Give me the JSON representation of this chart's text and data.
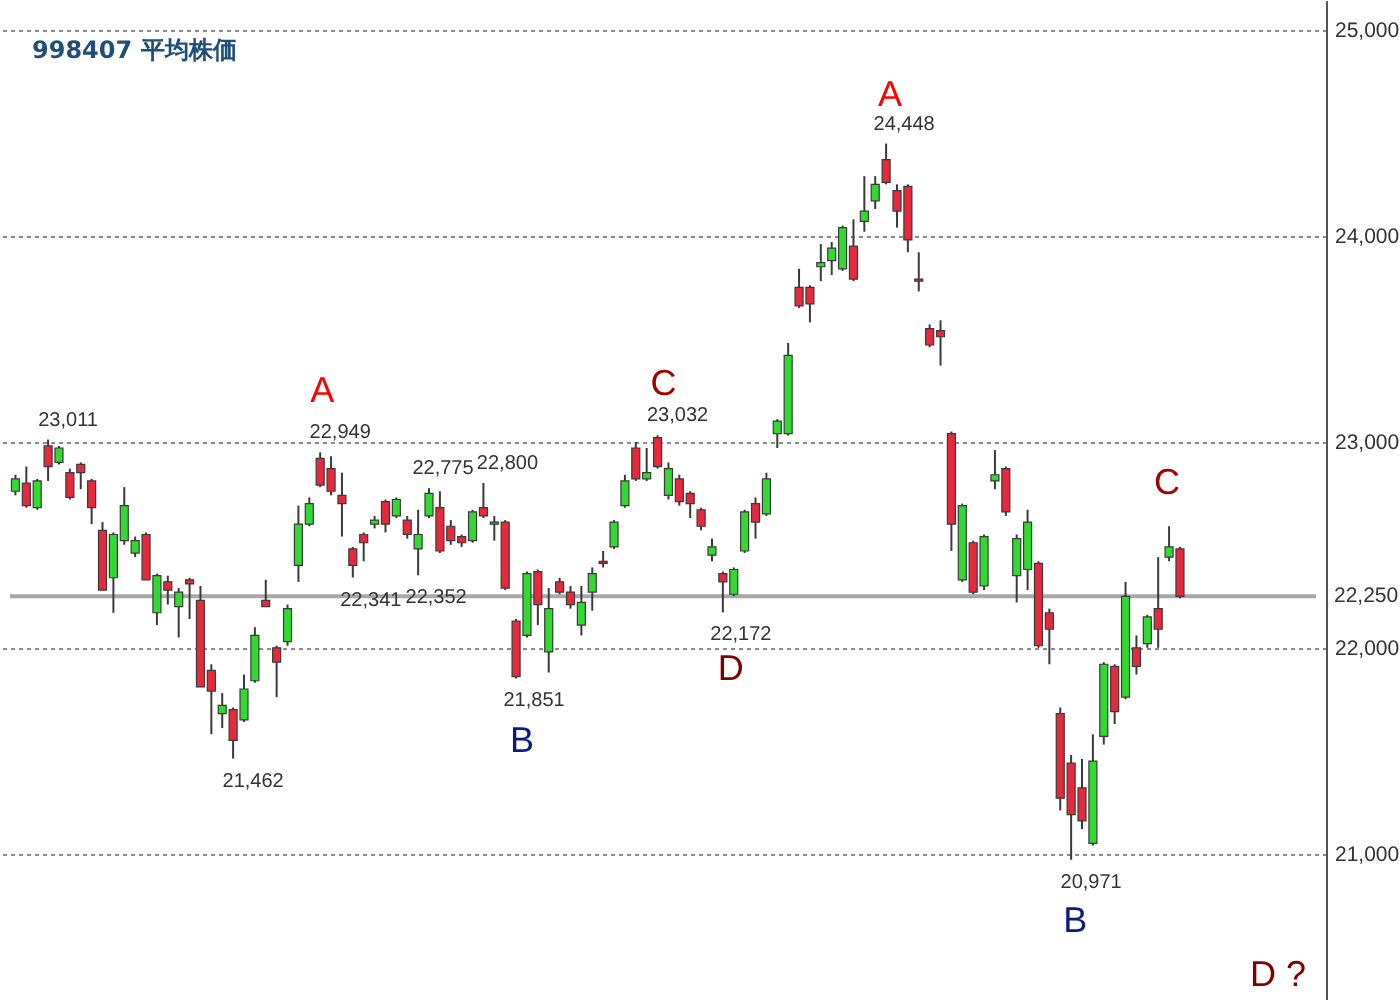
{
  "chart_data": {
    "type": "candlestick",
    "title": "998407 平均株価",
    "categories": [
      null,
      null,
      null,
      null,
      null,
      null,
      null,
      null,
      null,
      null,
      null,
      null,
      null,
      null,
      null,
      null,
      null,
      null,
      null,
      null,
      null,
      null,
      null,
      null,
      null,
      null,
      null,
      null,
      null,
      null,
      null,
      null,
      null,
      null,
      null,
      null,
      null,
      null,
      null,
      null,
      null,
      null,
      null,
      null,
      null,
      null,
      null,
      null,
      null,
      null,
      null,
      null,
      null,
      null,
      null,
      null,
      null,
      null,
      null,
      null,
      null,
      null,
      null,
      null,
      null,
      null,
      null,
      null,
      null,
      null,
      null,
      null,
      null,
      null,
      null,
      null,
      null,
      null,
      null,
      null,
      null,
      null,
      null,
      null,
      null,
      null,
      null,
      null,
      null,
      null,
      null,
      null,
      null,
      null,
      null,
      null,
      null,
      null,
      null,
      null,
      null,
      null,
      null,
      null,
      null,
      null,
      null,
      null,
      null,
      null,
      null,
      null,
      null,
      null,
      null,
      null,
      null,
      null,
      null,
      null
    ],
    "ohlc": [
      [
        22760,
        22840,
        22740,
        22820
      ],
      [
        22800,
        22880,
        22680,
        22690
      ],
      [
        22680,
        22820,
        22670,
        22810
      ],
      [
        22980,
        23011,
        22810,
        22880
      ],
      [
        22900,
        22980,
        22890,
        22970
      ],
      [
        22850,
        22870,
        22720,
        22730
      ],
      [
        22890,
        22900,
        22770,
        22850
      ],
      [
        22810,
        22820,
        22600,
        22680
      ],
      [
        22570,
        22610,
        22280,
        22280
      ],
      [
        22340,
        22560,
        22170,
        22550
      ],
      [
        22520,
        22780,
        22500,
        22690
      ],
      [
        22460,
        22540,
        22440,
        22520
      ],
      [
        22550,
        22560,
        22330,
        22330
      ],
      [
        22170,
        22360,
        22110,
        22350
      ],
      [
        22320,
        22350,
        22210,
        22280
      ],
      [
        22200,
        22290,
        22050,
        22270
      ],
      [
        22330,
        22340,
        22140,
        22310
      ],
      [
        22230,
        22300,
        21810,
        21810
      ],
      [
        21890,
        21920,
        21580,
        21790
      ],
      [
        21680,
        21780,
        21610,
        21720
      ],
      [
        21700,
        21710,
        21462,
        21550
      ],
      [
        21650,
        21870,
        21640,
        21800
      ],
      [
        21840,
        22100,
        21830,
        22060
      ],
      [
        22230,
        22330,
        22200,
        22200
      ],
      [
        22000,
        22010,
        21760,
        21930
      ],
      [
        22030,
        22210,
        22010,
        22190
      ],
      [
        22400,
        22690,
        22320,
        22600
      ],
      [
        22600,
        22730,
        22590,
        22700
      ],
      [
        22920,
        22949,
        22780,
        22790
      ],
      [
        22870,
        22930,
        22740,
        22760
      ],
      [
        22740,
        22850,
        22540,
        22700
      ],
      [
        22480,
        22490,
        22341,
        22400
      ],
      [
        22550,
        22560,
        22420,
        22510
      ],
      [
        22600,
        22640,
        22580,
        22620
      ],
      [
        22710,
        22720,
        22560,
        22600
      ],
      [
        22640,
        22730,
        22630,
        22720
      ],
      [
        22620,
        22640,
        22530,
        22550
      ],
      [
        22480,
        22670,
        22352,
        22550
      ],
      [
        22640,
        22775,
        22630,
        22750
      ],
      [
        22680,
        22760,
        22460,
        22470
      ],
      [
        22590,
        22620,
        22500,
        22520
      ],
      [
        22540,
        22550,
        22490,
        22510
      ],
      [
        22520,
        22670,
        22510,
        22660
      ],
      [
        22680,
        22800,
        22630,
        22640
      ],
      [
        22600,
        22640,
        22520,
        22610
      ],
      [
        22610,
        22620,
        22280,
        22290
      ],
      [
        22130,
        22140,
        21851,
        21860
      ],
      [
        22060,
        22370,
        22050,
        22360
      ],
      [
        22370,
        22380,
        22110,
        22210
      ],
      [
        21980,
        22290,
        21880,
        22190
      ],
      [
        22320,
        22340,
        22260,
        22270
      ],
      [
        22270,
        22300,
        22190,
        22210
      ],
      [
        22110,
        22300,
        22060,
        22220
      ],
      [
        22270,
        22390,
        22180,
        22360
      ],
      [
        22420,
        22470,
        22390,
        22410
      ],
      [
        22490,
        22620,
        22480,
        22610
      ],
      [
        22690,
        22840,
        22680,
        22810
      ],
      [
        22970,
        23000,
        22810,
        22820
      ],
      [
        22820,
        22970,
        22810,
        22850
      ],
      [
        23020,
        23032,
        22870,
        22880
      ],
      [
        22740,
        22900,
        22720,
        22870
      ],
      [
        22820,
        22840,
        22690,
        22710
      ],
      [
        22750,
        22760,
        22630,
        22700
      ],
      [
        22670,
        22680,
        22570,
        22590
      ],
      [
        22450,
        22530,
        22420,
        22490
      ],
      [
        22360,
        22370,
        22172,
        22320
      ],
      [
        22260,
        22390,
        22250,
        22380
      ],
      [
        22470,
        22670,
        22460,
        22660
      ],
      [
        22700,
        22730,
        22530,
        22610
      ],
      [
        22650,
        22850,
        22640,
        22820
      ],
      [
        23040,
        23110,
        22970,
        23100
      ],
      [
        23040,
        23480,
        23030,
        23420
      ],
      [
        23750,
        23840,
        23650,
        23660
      ],
      [
        23750,
        23760,
        23580,
        23670
      ],
      [
        23850,
        23960,
        23780,
        23870
      ],
      [
        23880,
        23970,
        23810,
        23940
      ],
      [
        23840,
        24050,
        23830,
        24040
      ],
      [
        23950,
        24080,
        23780,
        23790
      ],
      [
        24070,
        24290,
        24020,
        24120
      ],
      [
        24170,
        24290,
        24130,
        24250
      ],
      [
        24370,
        24448,
        24250,
        24260
      ],
      [
        24220,
        24250,
        24040,
        24120
      ],
      [
        24240,
        24250,
        23920,
        23980
      ],
      [
        23790,
        23920,
        23730,
        23780
      ],
      [
        23550,
        23570,
        23460,
        23470
      ],
      [
        23540,
        23590,
        23370,
        23510
      ],
      [
        23040,
        23050,
        22470,
        22600
      ],
      [
        22330,
        22700,
        22320,
        22690
      ],
      [
        22510,
        22520,
        22260,
        22270
      ],
      [
        22300,
        22550,
        22280,
        22540
      ],
      [
        22810,
        22960,
        22770,
        22840
      ],
      [
        22870,
        22880,
        22640,
        22660
      ],
      [
        22350,
        22550,
        22220,
        22530
      ],
      [
        22380,
        22670,
        22280,
        22610
      ],
      [
        22410,
        22420,
        22000,
        22010
      ],
      [
        22170,
        22190,
        21920,
        22090
      ],
      [
        21680,
        21710,
        21210,
        21270
      ],
      [
        21440,
        21480,
        20971,
        21190
      ],
      [
        21320,
        21460,
        21120,
        21160
      ],
      [
        21050,
        21580,
        21040,
        21450
      ],
      [
        21570,
        21930,
        21530,
        21920
      ],
      [
        21910,
        21920,
        21630,
        21690
      ],
      [
        21760,
        22320,
        21750,
        22250
      ],
      [
        22000,
        22060,
        21870,
        21910
      ],
      [
        22020,
        22160,
        22000,
        22150
      ],
      [
        22190,
        22440,
        22000,
        22090
      ],
      [
        22440,
        22590,
        22420,
        22490
      ],
      [
        22480,
        22490,
        22240,
        22250
      ],
      null,
      null,
      null,
      null,
      null,
      null,
      null,
      null,
      null,
      null,
      null,
      null
    ],
    "colors": [
      "#31d931",
      "#e8283c",
      "#31d931",
      "#e8283c",
      "#31d931",
      "#e8283c",
      "#e8283c",
      "#e8283c",
      "#e8283c",
      "#31d931",
      "#31d931",
      "#31d931",
      "#e8283c",
      "#31d931",
      "#e8283c",
      "#31d931",
      "#e8283c",
      "#e8283c",
      "#e8283c",
      "#31d931",
      "#e8283c",
      "#31d931",
      "#31d931",
      "#e8283c",
      "#e8283c",
      "#31d931",
      "#31d931",
      "#31d931",
      "#e8283c",
      "#e8283c",
      "#e8283c",
      "#e8283c",
      "#e8283c",
      "#31d931",
      "#e8283c",
      "#31d931",
      "#e8283c",
      "#31d931",
      "#31d931",
      "#e8283c",
      "#e8283c",
      "#e8283c",
      "#31d931",
      "#e8283c",
      "#31d931",
      "#e8283c",
      "#e8283c",
      "#31d931",
      "#e8283c",
      "#31d931",
      "#e8283c",
      "#e8283c",
      "#31d931",
      "#31d931",
      "#e8283c",
      "#31d931",
      "#31d931",
      "#e8283c",
      "#31d931",
      "#e8283c",
      "#31d931",
      "#e8283c",
      "#e8283c",
      "#e8283c",
      "#31d931",
      "#e8283c",
      "#31d931",
      "#31d931",
      "#e8283c",
      "#31d931",
      "#31d931",
      "#31d931",
      "#e8283c",
      "#e8283c",
      "#31d931",
      "#31d931",
      "#31d931",
      "#e8283c",
      "#31d931",
      "#31d931",
      "#e8283c",
      "#e8283c",
      "#e8283c",
      "#e8283c",
      "#e8283c",
      "#e8283c",
      "#e8283c",
      "#31d931",
      "#e8283c",
      "#31d931",
      "#31d931",
      "#e8283c",
      "#31d931",
      "#31d931",
      "#e8283c",
      "#e8283c",
      "#e8283c",
      "#e8283c",
      "#e8283c",
      "#31d931",
      "#31d931",
      "#e8283c",
      "#31d931",
      "#e8283c",
      "#31d931",
      "#e8283c",
      "#31d931",
      "#e8283c",
      null,
      null,
      null,
      null,
      null,
      null,
      null,
      null,
      null,
      null,
      null,
      null
    ],
    "ylim": [
      20290,
      25145
    ],
    "yticks": [
      {
        "value": 21000,
        "label": "21,000"
      },
      {
        "value": 22000,
        "label": "22,000"
      },
      {
        "value": 23000,
        "label": "23,000"
      },
      {
        "value": 24000,
        "label": "24,000"
      },
      {
        "value": 25000,
        "label": "25,000"
      }
    ],
    "grid": "y",
    "tick_labels": "y",
    "ref_lines": [
      {
        "axis": "y",
        "value": 22250,
        "label": "22,250",
        "color": "#a8a8a8",
        "line_style": "solid"
      }
    ],
    "annotations": [
      "23,011",
      "21,462",
      "A",
      "22,949",
      "22,341",
      "22,352",
      "22,775",
      "22,800",
      "21,851",
      "B",
      "C",
      "23,032",
      "22,172",
      "D",
      "A",
      "24,448",
      "20,971",
      "B",
      "C",
      "D ?"
    ]
  }
}
